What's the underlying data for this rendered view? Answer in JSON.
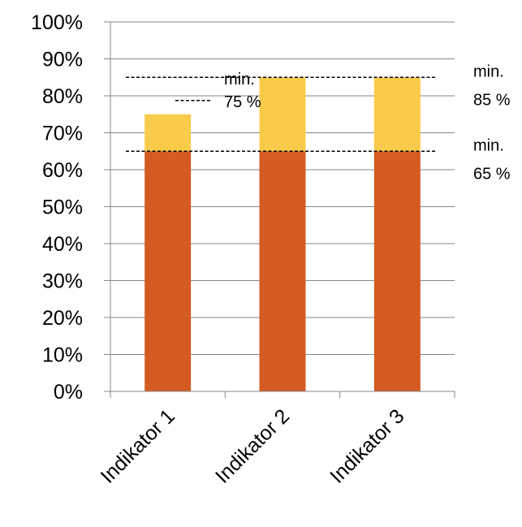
{
  "chart_data": {
    "type": "bar",
    "stacked": true,
    "categories": [
      "Indikator 1",
      "Indikator 2",
      "Indikator 3"
    ],
    "series": [
      {
        "values": [
          65,
          65,
          65
        ],
        "color": "#D45B21"
      },
      {
        "values": [
          10,
          20,
          20
        ],
        "color": "#F9CB4A"
      }
    ],
    "ylim": [
      0,
      100
    ],
    "yticks": [
      {
        "value": 0,
        "label": "0%"
      },
      {
        "value": 10,
        "label": "10%"
      },
      {
        "value": 20,
        "label": "20%"
      },
      {
        "value": 30,
        "label": "30%"
      },
      {
        "value": 40,
        "label": "40%"
      },
      {
        "value": 50,
        "label": "50%"
      },
      {
        "value": 60,
        "label": "60%"
      },
      {
        "value": 70,
        "label": "70%"
      },
      {
        "value": 80,
        "label": "80%"
      },
      {
        "value": 90,
        "label": "90%"
      },
      {
        "value": 100,
        "label": "100%"
      }
    ],
    "grid": true,
    "grid_color": "#878787",
    "threshold_lines": [
      {
        "value": 85,
        "label_line1": "min.",
        "label_line2": "85 %"
      },
      {
        "value": 65,
        "label_line1": "min.",
        "label_line2": "65 %"
      }
    ],
    "annotation": {
      "value": 75,
      "label_line1": "min.",
      "label_line2": "75 %"
    },
    "title": "",
    "xlabel": "",
    "ylabel": ""
  }
}
